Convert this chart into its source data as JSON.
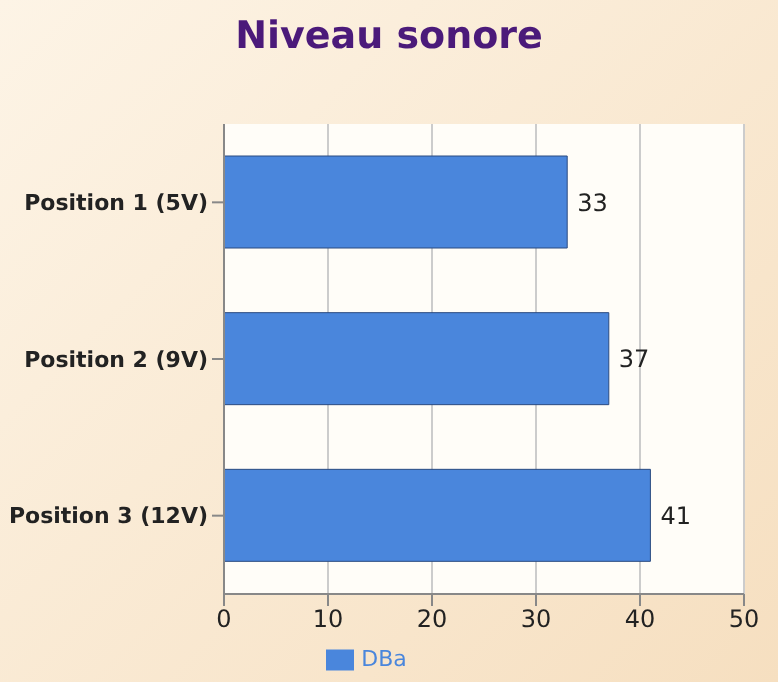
{
  "chart_data": {
    "type": "bar",
    "orientation": "horizontal",
    "title": "Niveau sonore",
    "categories": [
      "Position 1 (5V)",
      "Position 2 (9V)",
      "Position 3 (12V)"
    ],
    "series": [
      {
        "name": "DBa",
        "color": "#4a86dc",
        "values": [
          33,
          37,
          41
        ]
      }
    ],
    "xlim": [
      0,
      50
    ],
    "xticks": [
      0,
      10,
      20,
      30,
      40,
      50
    ],
    "grid": "x",
    "legend": "bottom",
    "data_labels": true
  }
}
